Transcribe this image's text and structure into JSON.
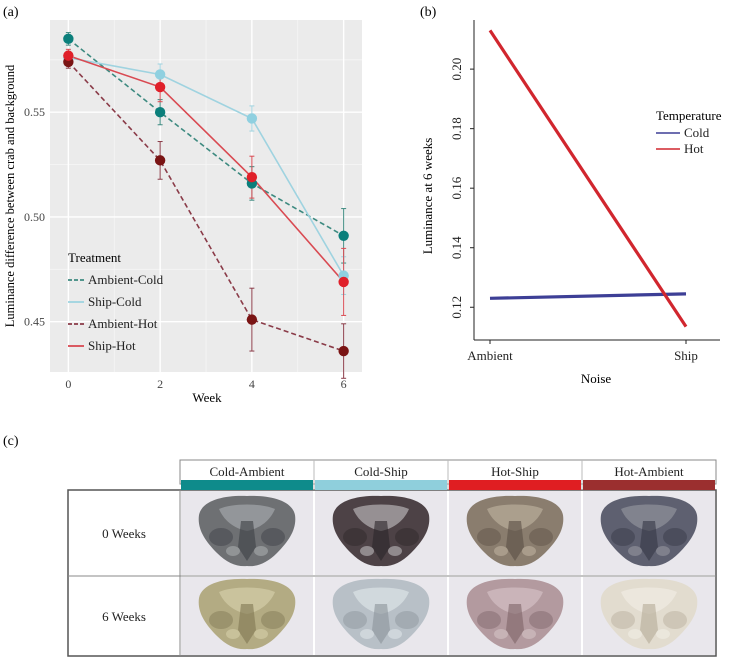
{
  "panel_labels": {
    "a": "(a)",
    "b": "(b)",
    "c": "(c)"
  },
  "chart_data": [
    {
      "type": "line",
      "panel": "(a)",
      "title": "",
      "xlabel": "Week",
      "ylabel": "Luminance difference between crab and background",
      "x": [
        0,
        2,
        4,
        6
      ],
      "xticks": [
        "0",
        "2",
        "4",
        "6"
      ],
      "xlim": [
        -0.4,
        6.4
      ],
      "yticks": [
        "0.45",
        "0.50",
        "0.55"
      ],
      "ytick_values": [
        0.45,
        0.5,
        0.55
      ],
      "ylim": [
        0.426,
        0.594
      ],
      "grid": true,
      "legend": {
        "title": "Treatment",
        "placement": "bottom-left"
      },
      "series": [
        {
          "name": "Ambient-Cold",
          "color": "#3d8a80",
          "dashed": true,
          "point_color": "#0b7f7b",
          "values": [
            0.585,
            0.55,
            0.516,
            0.491
          ],
          "err": [
            0.003,
            0.006,
            0.008,
            0.013
          ]
        },
        {
          "name": "Ship-Cold",
          "color": "#9fd3e0",
          "dashed": false,
          "point_color": "#8fd0e0",
          "values": [
            0.576,
            0.568,
            0.547,
            0.472
          ],
          "err": [
            0.003,
            0.005,
            0.006,
            0.009
          ]
        },
        {
          "name": "Ambient-Hot",
          "color": "#8a3b48",
          "dashed": true,
          "point_color": "#7a1414",
          "values": [
            0.574,
            0.527,
            0.451,
            0.436
          ],
          "err": [
            0.003,
            0.009,
            0.015,
            0.013
          ]
        },
        {
          "name": "Ship-Hot",
          "color": "#d94a52",
          "dashed": false,
          "point_color": "#e0202a",
          "values": [
            0.577,
            0.562,
            0.519,
            0.469
          ],
          "err": [
            0.003,
            0.007,
            0.01,
            0.016
          ]
        }
      ]
    },
    {
      "type": "line",
      "panel": "(b)",
      "title": "",
      "xlabel": "Noise",
      "ylabel": "Luminance at 6 weeks",
      "categories": [
        "Ambient",
        "Ship"
      ],
      "yticks": [
        "0.12",
        "0.14",
        "0.16",
        "0.18",
        "0.20"
      ],
      "ytick_values": [
        0.12,
        0.14,
        0.16,
        0.18,
        0.2
      ],
      "ylim": [
        0.109,
        0.2165
      ],
      "grid": false,
      "legend": {
        "title": "Temperature",
        "placement": "top-right"
      },
      "series": [
        {
          "name": "Cold",
          "color": "#3d3f96",
          "values": [
            0.123,
            0.1245
          ]
        },
        {
          "name": "Hot",
          "color": "#d1262e",
          "values": [
            0.213,
            0.1135
          ]
        }
      ]
    }
  ],
  "photo_grid": {
    "columns": [
      {
        "label": "Cold-Ambient",
        "color": "#0e8b8b"
      },
      {
        "label": "Cold-Ship",
        "color": "#8fcfdc"
      },
      {
        "label": "Hot-Ship",
        "color": "#e01e22"
      },
      {
        "label": "Hot-Ambient",
        "color": "#9b2f2f"
      }
    ],
    "rows": [
      {
        "label": "0 Weeks",
        "crabs": [
          {
            "name": "cold-ambient-0w",
            "shell": "#6e7073",
            "dark": "#3c3f44",
            "light": "#b3b7ba"
          },
          {
            "name": "cold-ship-0w",
            "shell": "#4d4246",
            "dark": "#2c2629",
            "light": "#d4d2d4"
          },
          {
            "name": "hot-ship-0w",
            "shell": "#8a7d6e",
            "dark": "#5a4f45",
            "light": "#c7bca8"
          },
          {
            "name": "hot-ambient-0w",
            "shell": "#5e6070",
            "dark": "#353744",
            "light": "#9fa0a8"
          }
        ]
      },
      {
        "label": "6 Weeks",
        "crabs": [
          {
            "name": "cold-ambient-6w",
            "shell": "#b3ab83",
            "dark": "#7e7652",
            "light": "#ddd7b2"
          },
          {
            "name": "cold-ship-6w",
            "shell": "#b8c0c7",
            "dark": "#8a929a",
            "light": "#e6ecef"
          },
          {
            "name": "hot-ship-6w",
            "shell": "#b39a9f",
            "dark": "#7d6468",
            "light": "#dccbcd"
          },
          {
            "name": "hot-ambient-6w",
            "shell": "#e2dccf",
            "dark": "#b5ab98",
            "light": "#f4f1ea"
          }
        ]
      }
    ]
  }
}
